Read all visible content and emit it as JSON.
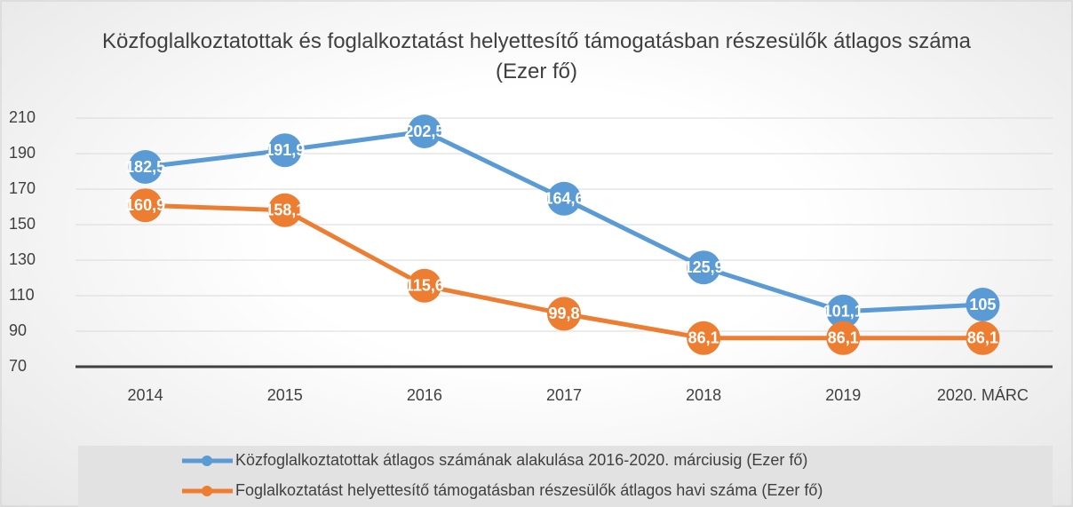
{
  "chart_data": {
    "type": "line",
    "title": "Közfoglalkoztatottak és foglalkoztatást helyettesítő támogatásban részesülők átlagos száma (Ezer fő)",
    "categories": [
      "2014",
      "2015",
      "2016",
      "2017",
      "2018",
      "2019",
      "2020. MÁRC"
    ],
    "series": [
      {
        "name": "Közfoglalkoztatottak átlagos számának alakulása 2016-2020. márciusig (Ezer fő)",
        "color": "#5b9bd5",
        "values": [
          182.5,
          191.9,
          202.5,
          164.6,
          125.9,
          101.1,
          105
        ],
        "value_labels": [
          "182,5",
          "191,9",
          "202,5",
          "164,6",
          "125,9",
          "101,1",
          "105"
        ]
      },
      {
        "name": "Foglalkoztatást helyettesítő támogatásban részesülők átlagos havi száma (Ezer fő)",
        "color": "#ed7d31",
        "values": [
          160.9,
          158.1,
          115.6,
          99.8,
          86.1,
          86.1,
          86.1
        ],
        "value_labels": [
          "160,9",
          "158,1",
          "115,6",
          "99,8",
          "86,1",
          "86,1",
          "86,1"
        ]
      }
    ],
    "ylim": [
      70,
      210
    ],
    "yticks": [
      70,
      90,
      110,
      130,
      150,
      170,
      190,
      210
    ],
    "grid": true,
    "legend": "bottom"
  }
}
